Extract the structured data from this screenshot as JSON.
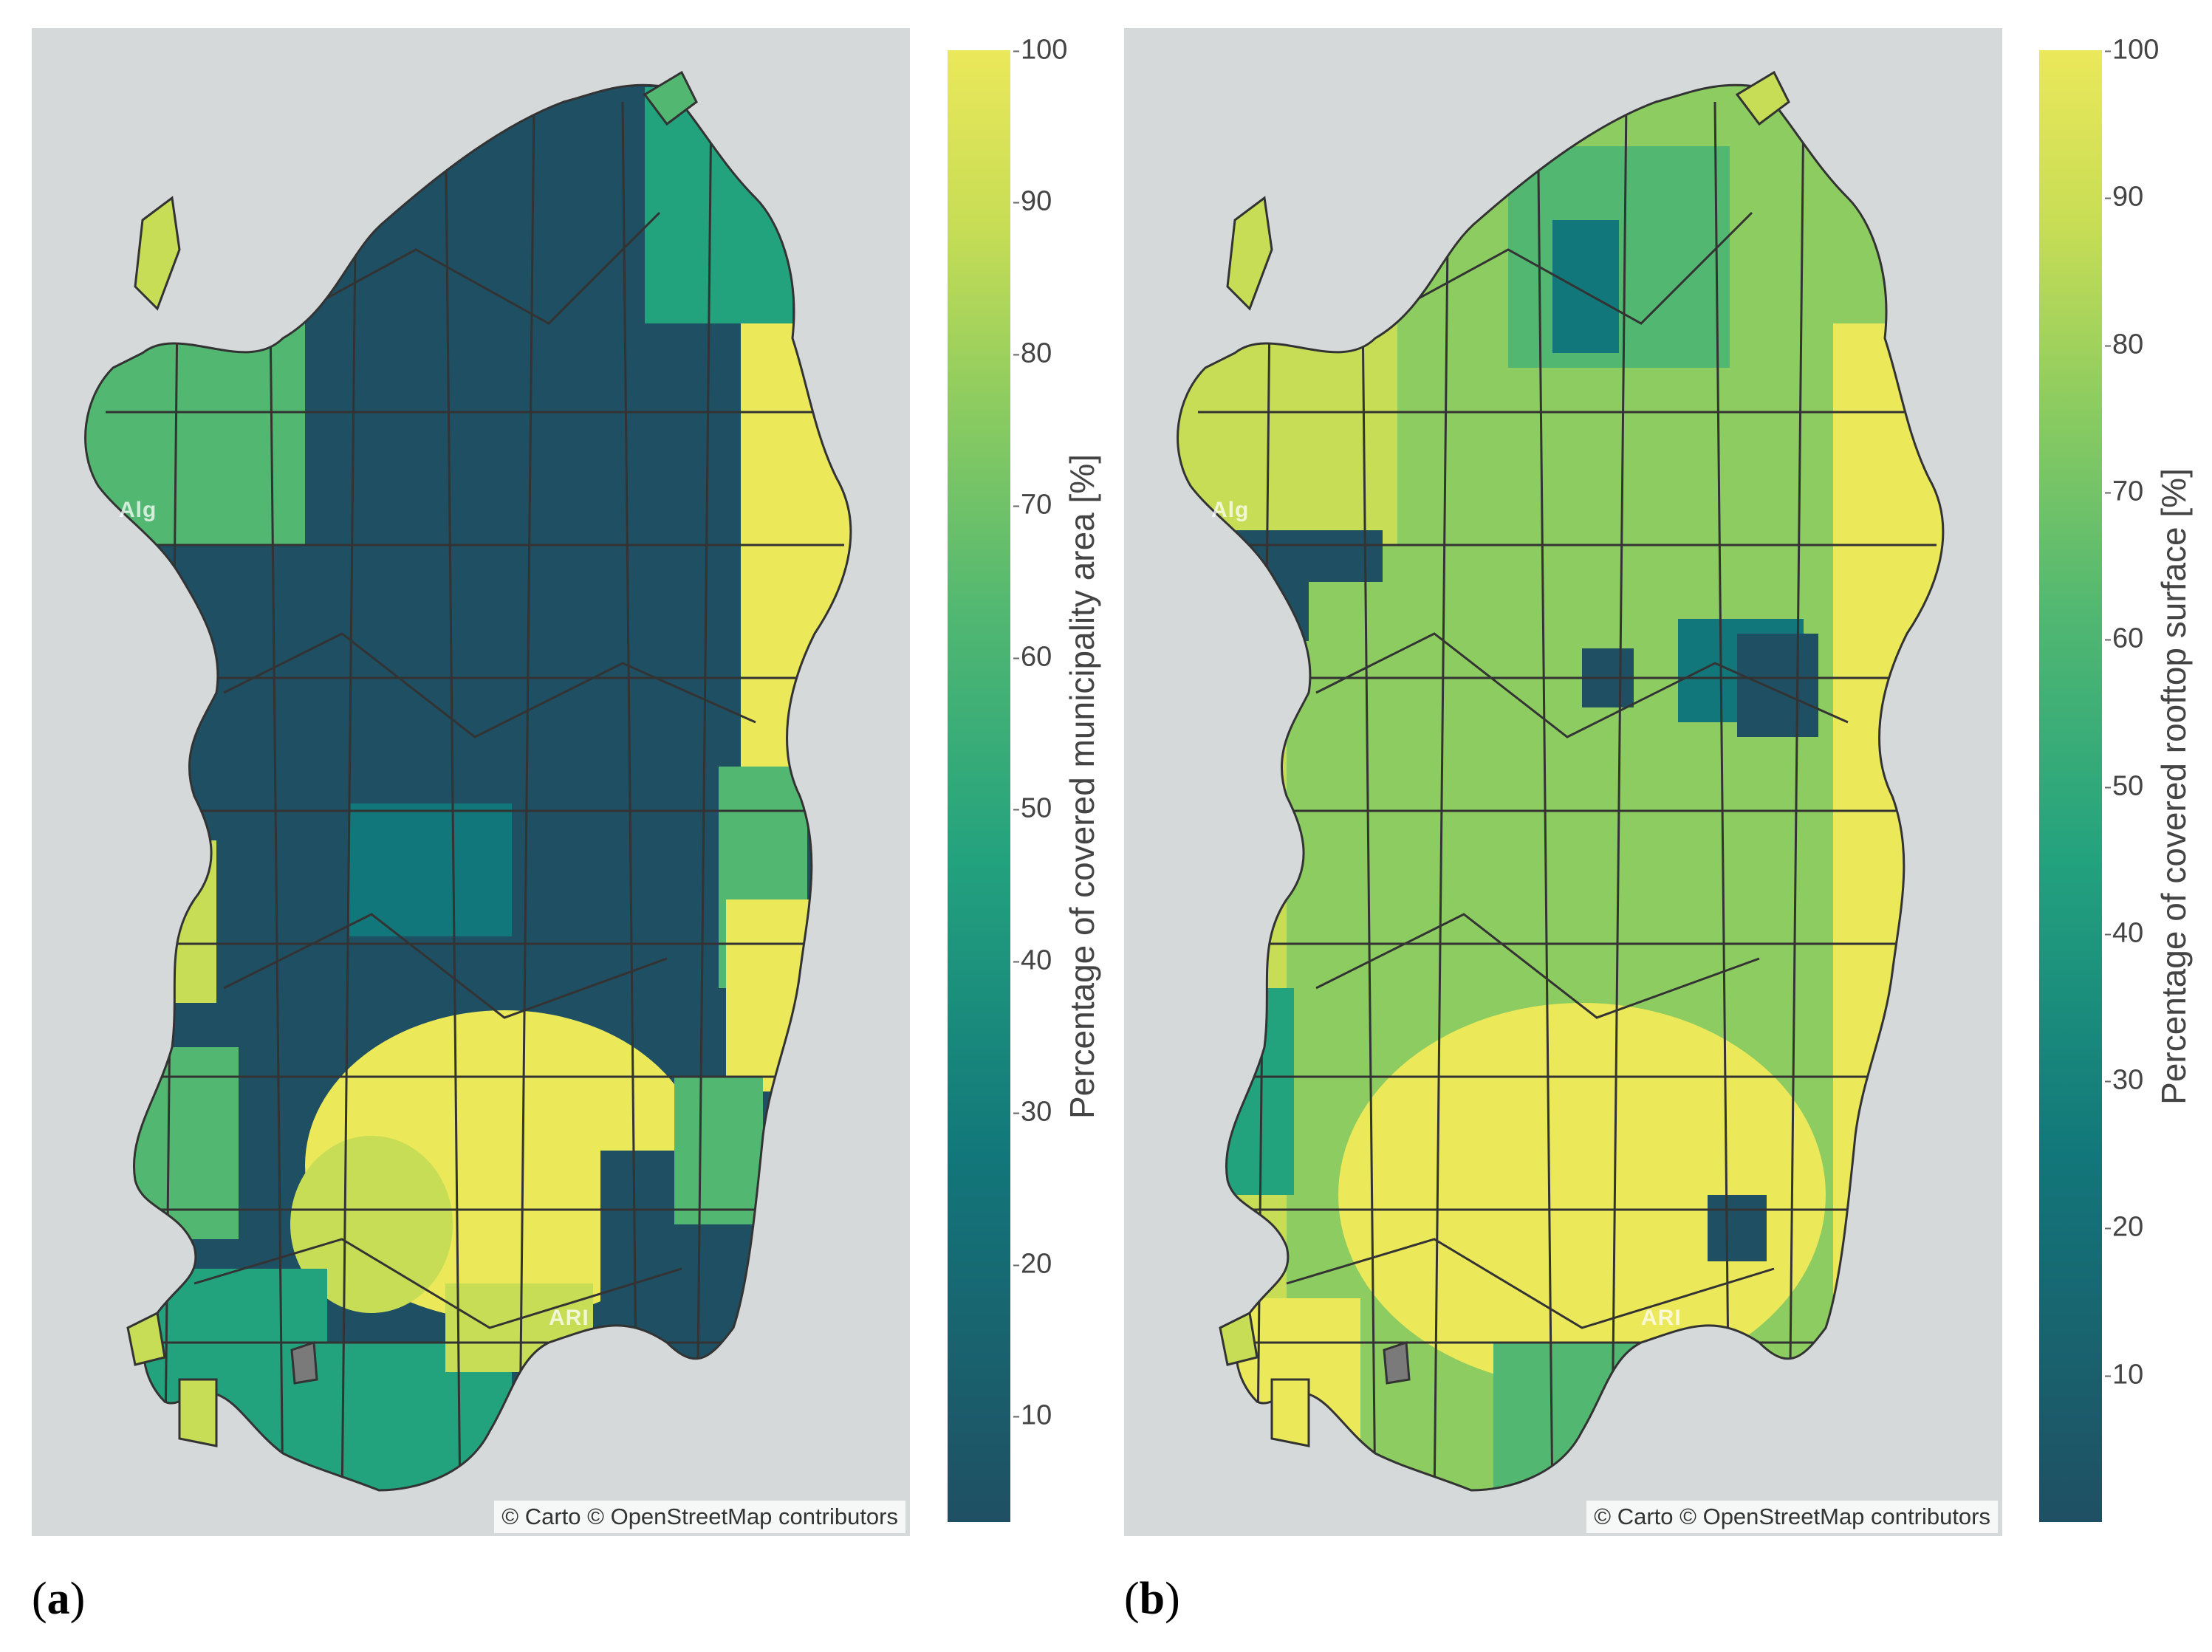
{
  "colorscale": [
    "#1f4f63",
    "#12777a",
    "#23a27e",
    "#52b871",
    "#8dcc60",
    "#c7dd55",
    "#ebe85a"
  ],
  "panels": [
    {
      "label_open": "(",
      "label_letter": "a",
      "label_close": ")",
      "attribution": "© Carto © OpenStreetMap contributors",
      "ghost_labels": [
        "Alg",
        "ARI"
      ],
      "colorbar": {
        "title": "Percentage of covered municipality area [%]",
        "ticks": [
          "100",
          "90",
          "80",
          "70",
          "60",
          "50",
          "40",
          "30",
          "20",
          "10"
        ],
        "range": [
          3,
          100
        ]
      }
    },
    {
      "label_open": "(",
      "label_letter": "b",
      "label_close": ")",
      "attribution": "© Carto © OpenStreetMap contributors",
      "ghost_labels": [
        "Alg",
        "ARI"
      ],
      "colorbar": {
        "title": "Percentage of covered rooftop surface [%]",
        "ticks": [
          "100",
          "90",
          "80",
          "70",
          "60",
          "50",
          "40",
          "30",
          "20",
          "10"
        ],
        "range": [
          0,
          100
        ]
      }
    }
  ]
}
